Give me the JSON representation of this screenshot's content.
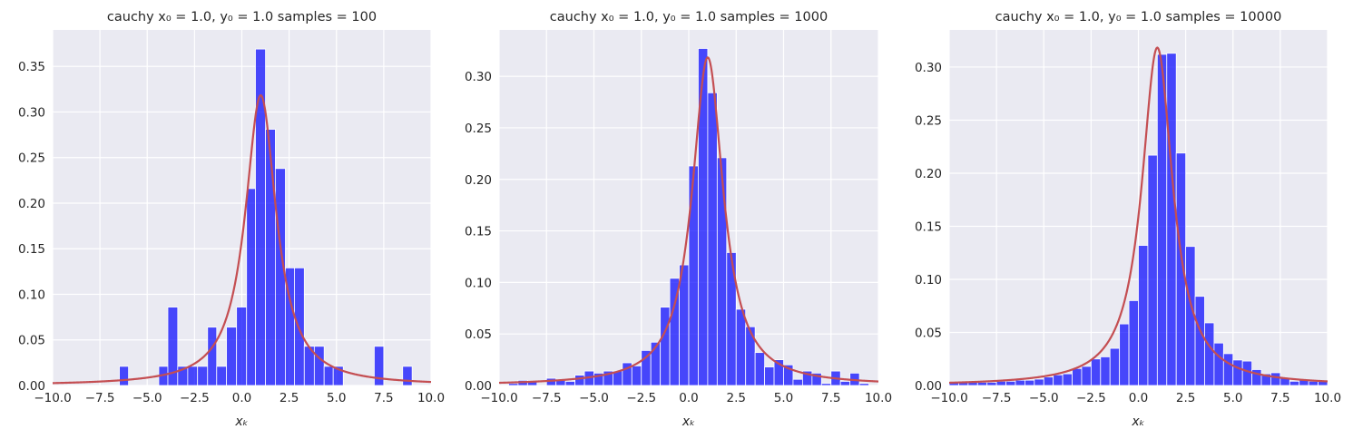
{
  "chart_data": [
    {
      "type": "bar",
      "title": "cauchy x₀ = 1.0, y₀ = 1.0  samples = 100",
      "xlabel": "xₖ",
      "ylabel": "",
      "xlim": [
        -10,
        10
      ],
      "ylim": [
        0,
        0.39
      ],
      "xticks": [
        "−10.0",
        "−7.5",
        "−5.0",
        "−2.5",
        "0.0",
        "2.5",
        "5.0",
        "7.5",
        "10.0"
      ],
      "yticks": [
        "0.00",
        "0.05",
        "0.10",
        "0.15",
        "0.20",
        "0.25",
        "0.30",
        "0.35"
      ],
      "bins": [
        {
          "x0": -6.47,
          "x1": -5.99,
          "value": 0.021
        },
        {
          "x0": -4.39,
          "x1": -3.91,
          "value": 0.021
        },
        {
          "x0": -3.91,
          "x1": -3.39,
          "value": 0.086
        },
        {
          "x0": -3.39,
          "x1": -2.86,
          "value": 0.021
        },
        {
          "x0": -2.86,
          "x1": -2.34,
          "value": 0.021
        },
        {
          "x0": -2.34,
          "x1": -1.81,
          "value": 0.021
        },
        {
          "x0": -1.81,
          "x1": -1.33,
          "value": 0.064
        },
        {
          "x0": -1.33,
          "x1": -0.81,
          "value": 0.021
        },
        {
          "x0": -0.81,
          "x1": -0.28,
          "value": 0.064
        },
        {
          "x0": -0.28,
          "x1": 0.25,
          "value": 0.086
        },
        {
          "x0": 0.25,
          "x1": 0.72,
          "value": 0.216
        },
        {
          "x0": 0.72,
          "x1": 1.25,
          "value": 0.369
        },
        {
          "x0": 1.25,
          "x1": 1.77,
          "value": 0.281
        },
        {
          "x0": 1.77,
          "x1": 2.3,
          "value": 0.238
        },
        {
          "x0": 2.3,
          "x1": 2.78,
          "value": 0.129
        },
        {
          "x0": 2.78,
          "x1": 3.3,
          "value": 0.129
        },
        {
          "x0": 3.3,
          "x1": 3.83,
          "value": 0.043
        },
        {
          "x0": 3.83,
          "x1": 4.35,
          "value": 0.043
        },
        {
          "x0": 4.35,
          "x1": 4.83,
          "value": 0.021
        },
        {
          "x0": 4.83,
          "x1": 5.36,
          "value": 0.021
        },
        {
          "x0": 7.0,
          "x1": 7.5,
          "value": 0.043
        },
        {
          "x0": 8.5,
          "x1": 9.0,
          "value": 0.021
        }
      ],
      "curve": {
        "x0": 1.0,
        "gamma": 1.0,
        "color": "#c44e52"
      },
      "bar_color": "#0000ff"
    },
    {
      "type": "bar",
      "title": "cauchy x₀ = 1.0, y₀ = 1.0  samples = 1000",
      "xlabel": "xₖ",
      "ylabel": "",
      "xlim": [
        -10,
        10
      ],
      "ylim": [
        0,
        0.345
      ],
      "xticks": [
        "−10.0",
        "−7.5",
        "−5.0",
        "−2.5",
        "0.0",
        "2.5",
        "5.0",
        "7.5",
        "10.0"
      ],
      "yticks": [
        "0.00",
        "0.05",
        "0.10",
        "0.15",
        "0.20",
        "0.25",
        "0.30"
      ],
      "bins": [
        {
          "x0": -9.5,
          "x1": -9.0,
          "value": 0.002
        },
        {
          "x0": -9.0,
          "x1": -8.5,
          "value": 0.005
        },
        {
          "x0": -8.5,
          "x1": -8.0,
          "value": 0.004
        },
        {
          "x0": -7.5,
          "x1": -7.0,
          "value": 0.007
        },
        {
          "x0": -7.0,
          "x1": -6.5,
          "value": 0.005
        },
        {
          "x0": -6.5,
          "x1": -6.0,
          "value": 0.004
        },
        {
          "x0": -6.0,
          "x1": -5.5,
          "value": 0.01
        },
        {
          "x0": -5.5,
          "x1": -5.0,
          "value": 0.014
        },
        {
          "x0": -5.0,
          "x1": -4.5,
          "value": 0.012
        },
        {
          "x0": -4.5,
          "x1": -4.0,
          "value": 0.014
        },
        {
          "x0": -4.0,
          "x1": -3.5,
          "value": 0.014
        },
        {
          "x0": -3.5,
          "x1": -3.0,
          "value": 0.022
        },
        {
          "x0": -3.0,
          "x1": -2.5,
          "value": 0.019
        },
        {
          "x0": -2.5,
          "x1": -2.0,
          "value": 0.034
        },
        {
          "x0": -2.0,
          "x1": -1.5,
          "value": 0.042
        },
        {
          "x0": -1.5,
          "x1": -1.0,
          "value": 0.076
        },
        {
          "x0": -1.0,
          "x1": -0.5,
          "value": 0.104
        },
        {
          "x0": -0.5,
          "x1": 0.0,
          "value": 0.117
        },
        {
          "x0": 0.0,
          "x1": 0.5,
          "value": 0.213
        },
        {
          "x0": 0.5,
          "x1": 1.0,
          "value": 0.327
        },
        {
          "x0": 1.0,
          "x1": 1.5,
          "value": 0.284
        },
        {
          "x0": 1.5,
          "x1": 2.0,
          "value": 0.221
        },
        {
          "x0": 2.0,
          "x1": 2.5,
          "value": 0.129
        },
        {
          "x0": 2.5,
          "x1": 3.0,
          "value": 0.074
        },
        {
          "x0": 3.0,
          "x1": 3.5,
          "value": 0.057
        },
        {
          "x0": 3.5,
          "x1": 4.0,
          "value": 0.032
        },
        {
          "x0": 4.0,
          "x1": 4.5,
          "value": 0.018
        },
        {
          "x0": 4.5,
          "x1": 5.0,
          "value": 0.025
        },
        {
          "x0": 5.0,
          "x1": 5.5,
          "value": 0.02
        },
        {
          "x0": 5.5,
          "x1": 6.0,
          "value": 0.006
        },
        {
          "x0": 6.0,
          "x1": 6.5,
          "value": 0.014
        },
        {
          "x0": 6.5,
          "x1": 7.0,
          "value": 0.012
        },
        {
          "x0": 7.0,
          "x1": 7.5,
          "value": 0.002
        },
        {
          "x0": 7.5,
          "x1": 8.0,
          "value": 0.014
        },
        {
          "x0": 8.0,
          "x1": 8.5,
          "value": 0.004
        },
        {
          "x0": 8.5,
          "x1": 9.0,
          "value": 0.012
        },
        {
          "x0": 9.0,
          "x1": 9.5,
          "value": 0.002
        }
      ],
      "curve": {
        "x0": 1.0,
        "gamma": 1.0,
        "color": "#c44e52"
      },
      "bar_color": "#0000ff"
    },
    {
      "type": "bar",
      "title": "cauchy x₀ = 1.0, y₀ = 1.0  samples = 10000",
      "xlabel": "xₖ",
      "ylabel": "",
      "xlim": [
        -10,
        10
      ],
      "ylim": [
        0,
        0.335
      ],
      "xticks": [
        "−10.0",
        "−7.5",
        "−5.0",
        "−2.5",
        "0.0",
        "2.5",
        "5.0",
        "7.5",
        "10.0"
      ],
      "yticks": [
        "0.00",
        "0.05",
        "0.10",
        "0.15",
        "0.20",
        "0.25",
        "0.30"
      ],
      "bins": [
        {
          "x0": -10.0,
          "x1": -9.5,
          "value": 0.003
        },
        {
          "x0": -9.5,
          "x1": -9.0,
          "value": 0.003
        },
        {
          "x0": -9.0,
          "x1": -8.5,
          "value": 0.003
        },
        {
          "x0": -8.5,
          "x1": -8.0,
          "value": 0.003
        },
        {
          "x0": -8.0,
          "x1": -7.5,
          "value": 0.003
        },
        {
          "x0": -7.5,
          "x1": -7.0,
          "value": 0.004
        },
        {
          "x0": -7.0,
          "x1": -6.5,
          "value": 0.004
        },
        {
          "x0": -6.5,
          "x1": -6.0,
          "value": 0.005
        },
        {
          "x0": -6.0,
          "x1": -5.5,
          "value": 0.005
        },
        {
          "x0": -5.5,
          "x1": -5.0,
          "value": 0.006
        },
        {
          "x0": -5.0,
          "x1": -4.5,
          "value": 0.008
        },
        {
          "x0": -4.5,
          "x1": -4.0,
          "value": 0.01
        },
        {
          "x0": -4.0,
          "x1": -3.5,
          "value": 0.011
        },
        {
          "x0": -3.5,
          "x1": -3.0,
          "value": 0.016
        },
        {
          "x0": -3.0,
          "x1": -2.5,
          "value": 0.018
        },
        {
          "x0": -2.5,
          "x1": -2.0,
          "value": 0.025
        },
        {
          "x0": -2.0,
          "x1": -1.5,
          "value": 0.027
        },
        {
          "x0": -1.5,
          "x1": -1.0,
          "value": 0.035
        },
        {
          "x0": -1.0,
          "x1": -0.5,
          "value": 0.058
        },
        {
          "x0": -0.5,
          "x1": 0.0,
          "value": 0.08
        },
        {
          "x0": 0.0,
          "x1": 0.5,
          "value": 0.132
        },
        {
          "x0": 0.5,
          "x1": 1.0,
          "value": 0.217
        },
        {
          "x0": 1.0,
          "x1": 1.5,
          "value": 0.312
        },
        {
          "x0": 1.5,
          "x1": 2.0,
          "value": 0.313
        },
        {
          "x0": 2.0,
          "x1": 2.5,
          "value": 0.219
        },
        {
          "x0": 2.5,
          "x1": 3.0,
          "value": 0.131
        },
        {
          "x0": 3.0,
          "x1": 3.5,
          "value": 0.084
        },
        {
          "x0": 3.5,
          "x1": 4.0,
          "value": 0.059
        },
        {
          "x0": 4.0,
          "x1": 4.5,
          "value": 0.04
        },
        {
          "x0": 4.5,
          "x1": 5.0,
          "value": 0.03
        },
        {
          "x0": 5.0,
          "x1": 5.5,
          "value": 0.024
        },
        {
          "x0": 5.5,
          "x1": 6.0,
          "value": 0.023
        },
        {
          "x0": 6.0,
          "x1": 6.5,
          "value": 0.015
        },
        {
          "x0": 6.5,
          "x1": 7.0,
          "value": 0.011
        },
        {
          "x0": 7.0,
          "x1": 7.5,
          "value": 0.012
        },
        {
          "x0": 7.5,
          "x1": 8.0,
          "value": 0.007
        },
        {
          "x0": 8.0,
          "x1": 8.5,
          "value": 0.004
        },
        {
          "x0": 8.5,
          "x1": 9.0,
          "value": 0.005
        },
        {
          "x0": 9.0,
          "x1": 9.5,
          "value": 0.004
        },
        {
          "x0": 9.5,
          "x1": 10.0,
          "value": 0.004
        }
      ],
      "curve": {
        "x0": 1.0,
        "gamma": 1.0,
        "color": "#c44e52"
      },
      "bar_color": "#0000ff"
    }
  ]
}
